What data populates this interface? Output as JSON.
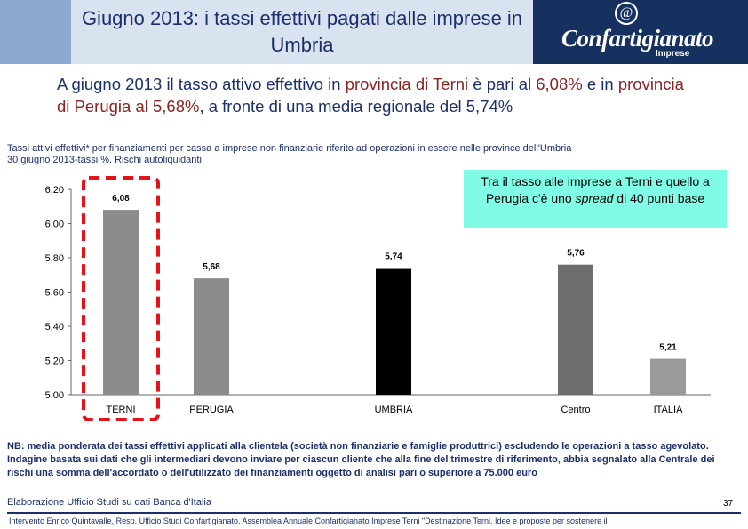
{
  "header": {
    "title": "Giugno 2013: i tassi effettivi pagati dalle imprese in Umbria",
    "logo_main": "Confartigianato",
    "logo_sub": "Imprese",
    "logo_symbol": "@"
  },
  "headline": {
    "part1": "A giugno 2013 il tasso attivo effettivo in ",
    "part2": "provincia di Terni",
    "part3": " è pari al ",
    "part4": "6,08%",
    "part5": " e in ",
    "part6": "provincia di Perugia al 5,68%",
    "part7": ", a fronte di una media regionale del 5,74%"
  },
  "chart_data": {
    "type": "bar",
    "title": "Tassi attivi effettivi* per finanziamenti per cassa a imprese non finanziarie riferito ad operazioni in essere nelle province dell'Umbria",
    "subtitle": "30 giugno 2013-tassi %. Rischi autoliquidanti",
    "categories": [
      "TERNI",
      "PERUGIA",
      "UMBRIA",
      "Centro",
      "ITALIA"
    ],
    "values": [
      6.08,
      5.68,
      5.74,
      5.76,
      5.21
    ],
    "value_labels": [
      "6,08",
      "5,68",
      "5,74",
      "5,76",
      "5,21"
    ],
    "ylim": [
      5.0,
      6.2
    ],
    "yticks": [
      5.0,
      5.2,
      5.4,
      5.6,
      5.8,
      6.0,
      6.2
    ],
    "ytick_labels": [
      "5,00",
      "5,20",
      "5,40",
      "5,60",
      "5,80",
      "6,00",
      "6,20"
    ],
    "bar_colors": [
      "#8c8c8c",
      "#8c8c8c",
      "#000000",
      "#6e6e6e",
      "#9a9a9a"
    ],
    "highlight": "TERNI",
    "highlight_color": "#e3121b",
    "xlabel": "",
    "ylabel": ""
  },
  "callout": {
    "text1": "Tra il tasso alle imprese a Terni e quello a Perugia c'è uno ",
    "emph": "spread",
    "text2": " di 40 punti base"
  },
  "note": "NB: media ponderata dei tassi effettivi applicati alla clientela (società non finanziarie e famiglie produttrici) escludendo le operazioni a tasso agevolato. Indagine basata sui dati che gli intermediari devono inviare per ciascun cliente che alla fine del trimestre di riferimento, abbia segnalato alla Centrale dei rischi una somma dell'accordato o dell'utilizzato dei finanziamenti oggetto di analisi pari o superiore a 75.000 euro",
  "source": "Elaborazione Ufficio Studi su dati Banca d'Italia",
  "page_number": "37",
  "footer": "Intervento Enrico Quintavalle, Resp. Ufficio Studi Confartigianato. Assemblea Annuale Confartigianato Imprese Terni \"Destinazione Terni. Idee e proposte per sostenere il"
}
